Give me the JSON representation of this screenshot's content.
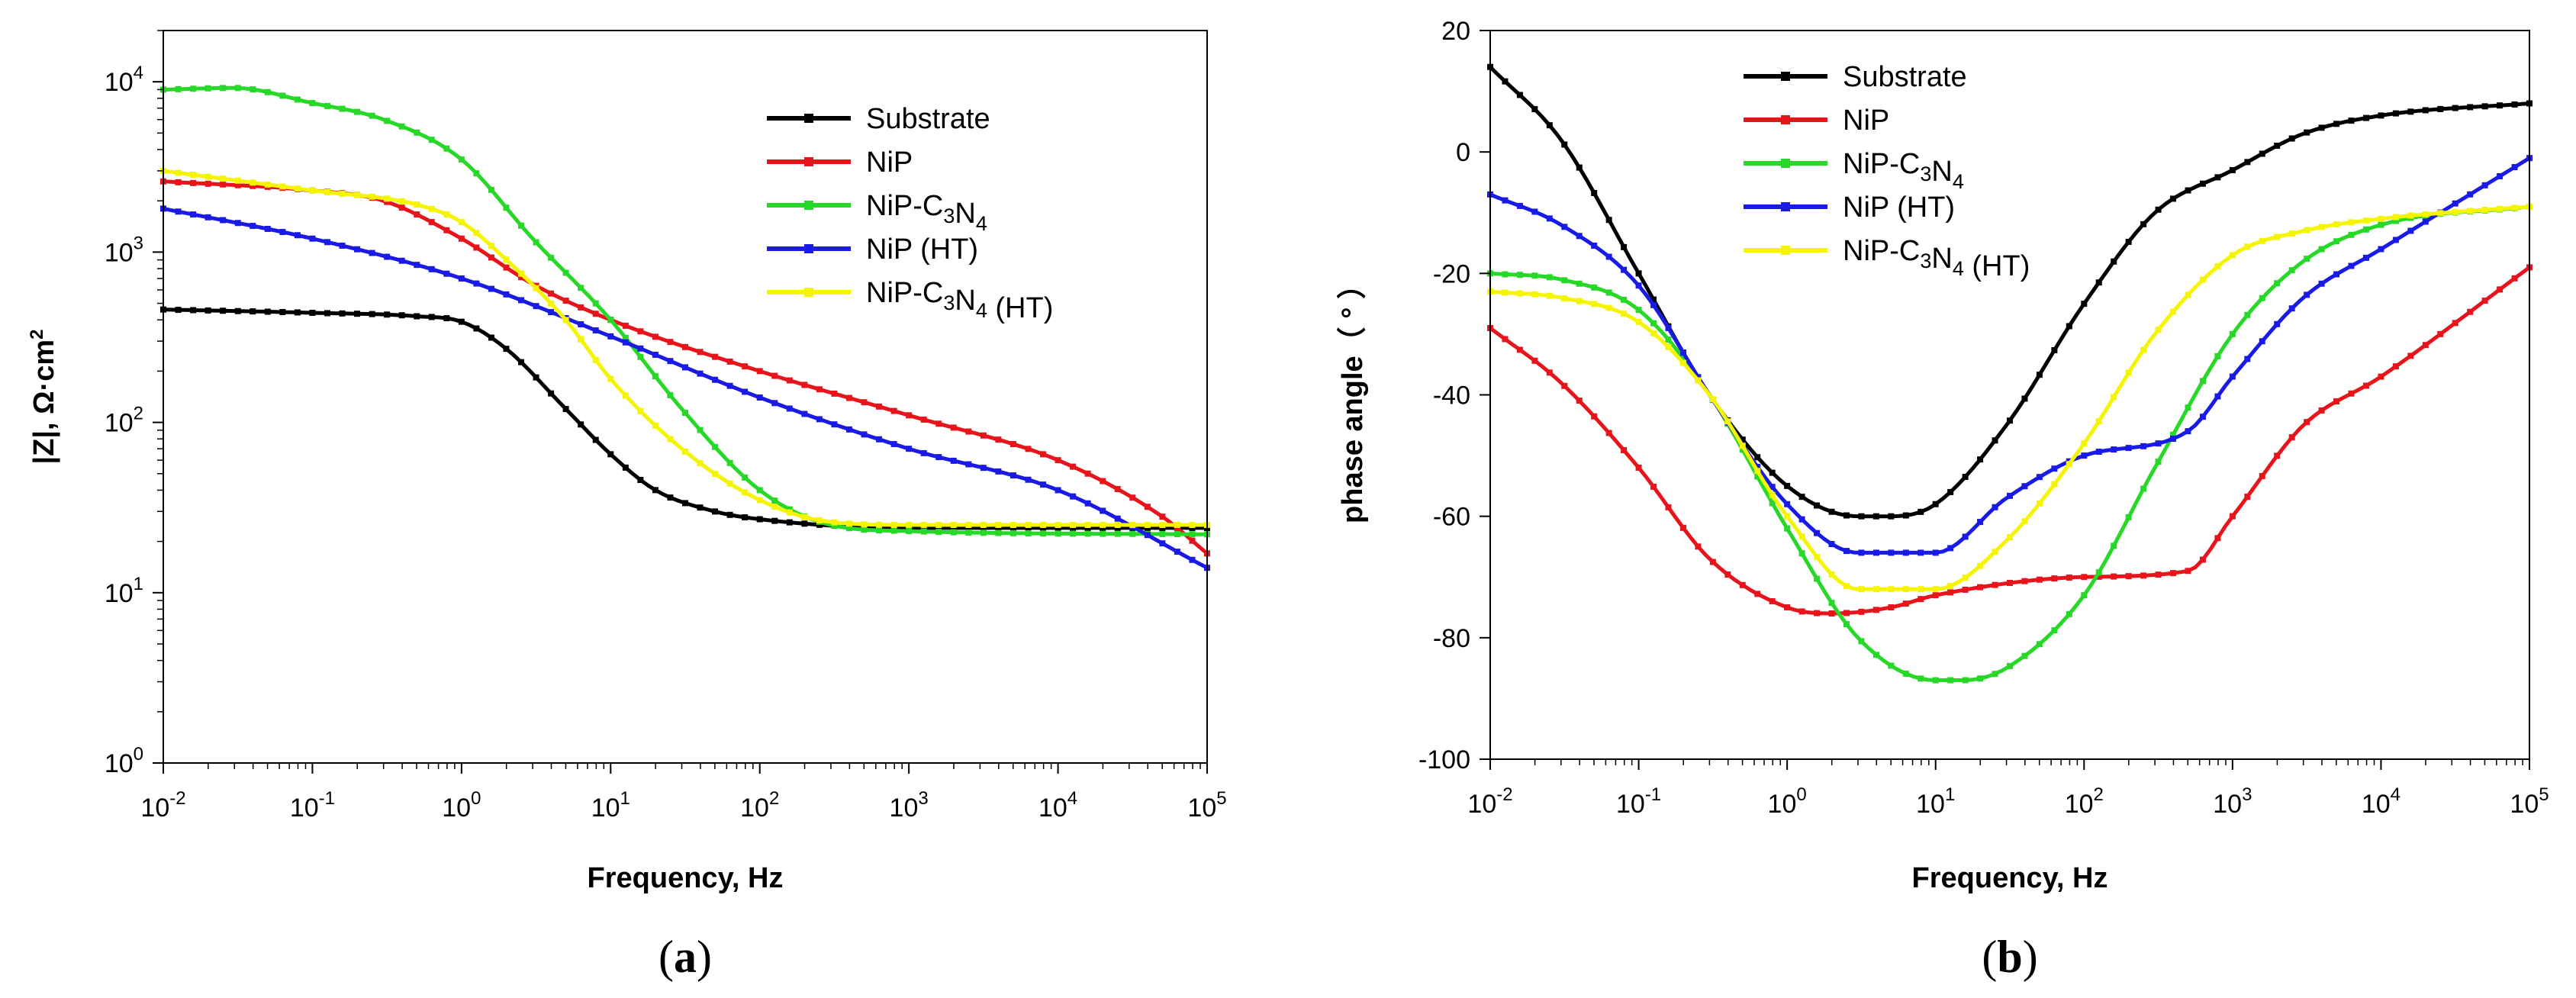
{
  "chart_data": [
    {
      "id": "a",
      "type": "line",
      "panel_label": "a",
      "xlabel": "Frequency, Hz",
      "ylabel": "|Z|, Ω·cm",
      "ylabel_sup": "2",
      "xscale": "log",
      "yscale": "log",
      "xlim": [
        0.01,
        100000
      ],
      "ylim": [
        1,
        20000
      ],
      "x_ticks": [
        {
          "base": "10",
          "exp": "-2"
        },
        {
          "base": "10",
          "exp": "-1"
        },
        {
          "base": "10",
          "exp": "0"
        },
        {
          "base": "10",
          "exp": "1"
        },
        {
          "base": "10",
          "exp": "2"
        },
        {
          "base": "10",
          "exp": "3"
        },
        {
          "base": "10",
          "exp": "4"
        },
        {
          "base": "10",
          "exp": "5"
        }
      ],
      "y_ticks": [
        {
          "base": "10",
          "exp": "0"
        },
        {
          "base": "10",
          "exp": "1"
        },
        {
          "base": "10",
          "exp": "2"
        },
        {
          "base": "10",
          "exp": "3"
        },
        {
          "base": "10",
          "exp": "4"
        }
      ],
      "legend_position": "top-right",
      "series": [
        {
          "name": "Substrate",
          "color": "#000000",
          "x": [
            0.01,
            0.1,
            0.5,
            1,
            2,
            5,
            10,
            20,
            50,
            100,
            1000,
            10000,
            100000
          ],
          "values": [
            460,
            440,
            420,
            390,
            270,
            120,
            65,
            40,
            30,
            27,
            24,
            24,
            24
          ]
        },
        {
          "name": "NiP",
          "color": "#e8141b",
          "x": [
            0.01,
            0.1,
            0.3,
            1,
            3,
            10,
            100,
            1000,
            10000,
            50000,
            100000
          ],
          "values": [
            2600,
            2300,
            2000,
            1200,
            650,
            400,
            200,
            110,
            60,
            28,
            17
          ]
        },
        {
          "name": "NiP-C3N4",
          "color": "#28d828",
          "x": [
            0.01,
            0.03,
            0.1,
            0.3,
            1,
            3,
            10,
            30,
            100,
            300,
            1000,
            100000
          ],
          "values": [
            9000,
            9200,
            7500,
            6000,
            3500,
            1200,
            400,
            120,
            40,
            25,
            23,
            22
          ]
        },
        {
          "name": "NiP (HT)",
          "color": "#1a1ae6",
          "x": [
            0.01,
            0.1,
            1,
            10,
            100,
            1000,
            10000,
            100000
          ],
          "values": [
            1800,
            1200,
            700,
            320,
            140,
            70,
            40,
            14
          ]
        },
        {
          "name": "NiP-C3N4 (HT)",
          "color": "#f5f500",
          "x": [
            0.01,
            0.1,
            0.5,
            1,
            2,
            5,
            10,
            30,
            100,
            300,
            1000,
            100000
          ],
          "values": [
            3000,
            2300,
            1900,
            1500,
            900,
            400,
            180,
            70,
            35,
            26,
            25,
            25
          ]
        }
      ]
    },
    {
      "id": "b",
      "type": "line",
      "panel_label": "b",
      "xlabel": "Frequency, Hz",
      "ylabel": "phase angle（ ° ）",
      "xscale": "log",
      "yscale": "linear",
      "xlim": [
        0.01,
        100000
      ],
      "ylim": [
        -100,
        20
      ],
      "x_ticks": [
        {
          "base": "10",
          "exp": "-2"
        },
        {
          "base": "10",
          "exp": "-1"
        },
        {
          "base": "10",
          "exp": "0"
        },
        {
          "base": "10",
          "exp": "1"
        },
        {
          "base": "10",
          "exp": "2"
        },
        {
          "base": "10",
          "exp": "3"
        },
        {
          "base": "10",
          "exp": "4"
        },
        {
          "base": "10",
          "exp": "5"
        }
      ],
      "y_ticks": [
        "20",
        "0",
        "-20",
        "-40",
        "-60",
        "-80",
        "-100"
      ],
      "legend_position": "top-left",
      "series": [
        {
          "name": "Substrate",
          "color": "#000000",
          "x": [
            0.01,
            0.03,
            0.1,
            0.3,
            1,
            3,
            5,
            10,
            30,
            100,
            300,
            1000,
            3000,
            10000,
            100000
          ],
          "values": [
            14,
            2,
            -20,
            -40,
            -55,
            -60,
            -60,
            -58,
            -45,
            -25,
            -10,
            -3,
            3,
            6,
            8
          ]
        },
        {
          "name": "NiP",
          "color": "#e8141b",
          "x": [
            0.01,
            0.03,
            0.1,
            0.3,
            1,
            2,
            5,
            10,
            100,
            500,
            1000,
            3000,
            10000,
            100000
          ],
          "values": [
            -29,
            -38,
            -52,
            -67,
            -75,
            -76,
            -75,
            -73,
            -70,
            -69,
            -60,
            -45,
            -37,
            -19
          ]
        },
        {
          "name": "NiP-C3N4",
          "color": "#28d828",
          "x": [
            0.01,
            0.03,
            0.1,
            0.3,
            1,
            3,
            10,
            15,
            30,
            100,
            300,
            1000,
            3000,
            10000,
            100000
          ],
          "values": [
            -20,
            -21,
            -26,
            -40,
            -62,
            -80,
            -87,
            -87,
            -85,
            -73,
            -52,
            -30,
            -18,
            -12,
            -9
          ]
        },
        {
          "name": "NiP (HT)",
          "color": "#1a1ae6",
          "x": [
            0.01,
            0.03,
            0.1,
            0.3,
            1,
            3,
            10,
            30,
            100,
            500,
            1000,
            3000,
            10000,
            100000
          ],
          "values": [
            -7,
            -12,
            -22,
            -40,
            -58,
            -66,
            -66,
            -57,
            -50,
            -46,
            -37,
            -24,
            -16,
            -1
          ]
        },
        {
          "name": "NiP-C3N4 (HT)",
          "color": "#f5f500",
          "x": [
            0.01,
            0.03,
            0.1,
            0.3,
            1,
            3,
            10,
            30,
            100,
            300,
            1000,
            3000,
            10000,
            100000
          ],
          "values": [
            -23,
            -24,
            -28,
            -40,
            -60,
            -72,
            -72,
            -64,
            -48,
            -30,
            -17,
            -13,
            -11,
            -9
          ]
        }
      ]
    }
  ]
}
